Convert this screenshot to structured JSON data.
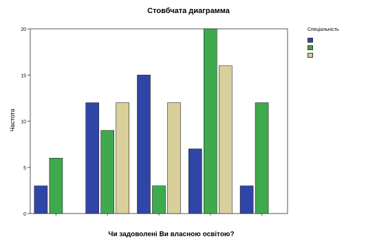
{
  "chart_data": {
    "type": "bar",
    "title": "Стовбчата диаграмма",
    "xlabel": "Чи задоволені Ви власною освітою?",
    "ylabel": "Частота",
    "ylim": [
      0,
      20
    ],
    "yticks": [
      0,
      5,
      10,
      15,
      20
    ],
    "grid": false,
    "legend_title": "Спеціальність",
    "legend_position": "right",
    "categories": [
      "",
      "",
      "",
      "",
      ""
    ],
    "series": [
      {
        "name": "",
        "color": "#2f46a6",
        "values": [
          3,
          12,
          15,
          7,
          3
        ]
      },
      {
        "name": "",
        "color": "#3eaa4d",
        "values": [
          6,
          9,
          3,
          20,
          12
        ]
      },
      {
        "name": "",
        "color": "#d8cf9a",
        "values": [
          0,
          12,
          12,
          16,
          0
        ]
      }
    ]
  }
}
